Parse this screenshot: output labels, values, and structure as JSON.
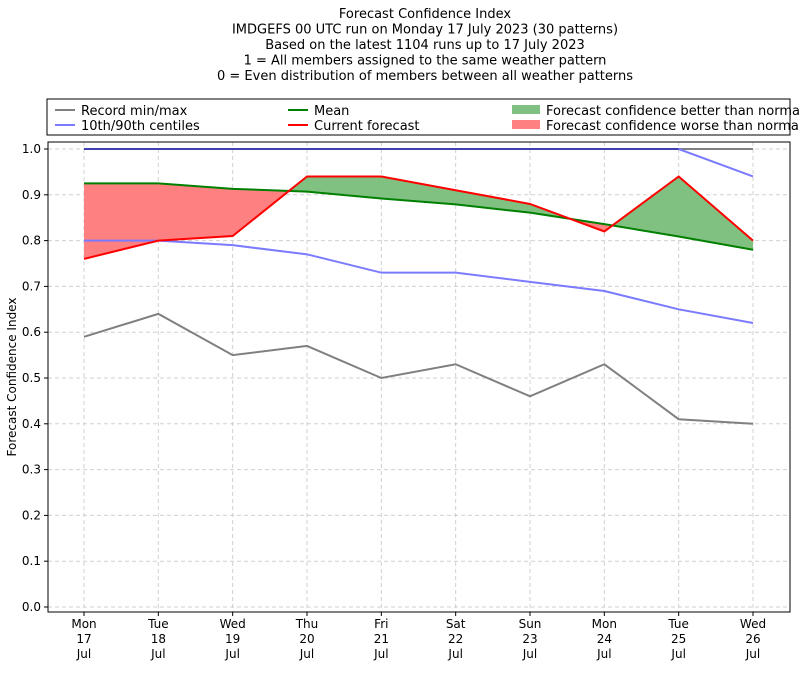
{
  "chart_data": {
    "type": "line",
    "title_lines": [
      "Forecast Confidence Index",
      "IMDGEFS 00 UTC run on Monday 17 July 2023 (30 patterns)",
      "Based on the latest 1104 runs up to 17 July 2023",
      "1 = All members assigned to the same weather pattern",
      "0 = Even distribution of members between all weather patterns"
    ],
    "ylabel": "Forecast Confidence Index",
    "ylim": [
      -0.01,
      1.01
    ],
    "yticks": [
      "0.0",
      "0.1",
      "0.2",
      "0.3",
      "0.4",
      "0.5",
      "0.6",
      "0.7",
      "0.8",
      "0.9",
      "1.0"
    ],
    "categories": [
      [
        "Mon",
        "17",
        "Jul"
      ],
      [
        "Tue",
        "18",
        "Jul"
      ],
      [
        "Wed",
        "19",
        "Jul"
      ],
      [
        "Thu",
        "20",
        "Jul"
      ],
      [
        "Fri",
        "21",
        "Jul"
      ],
      [
        "Sat",
        "22",
        "Jul"
      ],
      [
        "Sun",
        "23",
        "Jul"
      ],
      [
        "Mon",
        "24",
        "Jul"
      ],
      [
        "Tue",
        "25",
        "Jul"
      ],
      [
        "Wed",
        "26",
        "Jul"
      ]
    ],
    "grid": true,
    "legend": {
      "placement": "top",
      "entries": [
        {
          "label": "Record min/max",
          "kind": "line",
          "color": "#808080"
        },
        {
          "label": "10th/90th centiles",
          "kind": "line",
          "color": "#7b7bff"
        },
        {
          "label": "Mean",
          "kind": "line",
          "color": "#008000"
        },
        {
          "label": "Current forecast",
          "kind": "line",
          "color": "#ff0000"
        },
        {
          "label": "Forecast confidence better than normal",
          "kind": "patch",
          "color": "#80c080"
        },
        {
          "label": "Forecast confidence worse than normal",
          "kind": "patch",
          "color": "#ff8080"
        }
      ]
    },
    "series": [
      {
        "name": "Record min",
        "color": "#808080",
        "values": [
          0.59,
          0.64,
          0.55,
          0.57,
          0.5,
          0.53,
          0.46,
          0.53,
          0.41,
          0.4
        ]
      },
      {
        "name": "Record max",
        "color": "#808080",
        "values": [
          1.0,
          1.0,
          1.0,
          1.0,
          1.0,
          1.0,
          1.0,
          1.0,
          1.0,
          1.0
        ]
      },
      {
        "name": "10th centile",
        "color": "#7b7bff",
        "values": [
          0.8,
          0.8,
          0.79,
          0.77,
          0.73,
          0.73,
          0.71,
          0.69,
          0.65,
          0.62
        ]
      },
      {
        "name": "90th centile",
        "color": "#7b7bff",
        "values": [
          1.0,
          1.0,
          1.0,
          1.0,
          1.0,
          1.0,
          1.0,
          1.0,
          1.0,
          0.94
        ]
      },
      {
        "name": "Mean",
        "color": "#008000",
        "values": [
          0.925,
          0.925,
          0.913,
          0.907,
          0.892,
          0.879,
          0.861,
          0.836,
          0.809,
          0.78
        ]
      },
      {
        "name": "Current forecast",
        "color": "#ff0000",
        "values": [
          0.76,
          0.8,
          0.81,
          0.94,
          0.94,
          0.91,
          0.88,
          0.82,
          0.94,
          0.8
        ]
      }
    ]
  }
}
